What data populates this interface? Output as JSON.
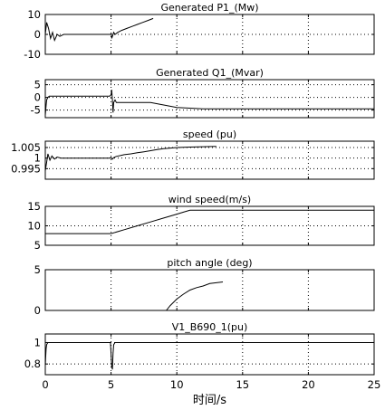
{
  "x_axis": {
    "range": [
      0,
      25
    ],
    "ticks": [
      0,
      5,
      10,
      15,
      20,
      25
    ],
    "tick_labels": [
      "0",
      "5",
      "10",
      "15",
      "20",
      "25"
    ],
    "label": "时间/s"
  },
  "chart_data": [
    {
      "type": "line",
      "title": "Generated P1_(Mw)",
      "xlim": [
        0,
        25
      ],
      "ylim": [
        -10,
        10
      ],
      "yticks": [
        -10,
        0,
        10
      ],
      "ytick_labels": [
        "-10",
        "0",
        "10"
      ],
      "grid": true,
      "series": [
        {
          "x": [
            0,
            0.1,
            0.25,
            0.4,
            0.55,
            0.7,
            0.9,
            1.1,
            1.4,
            1.7,
            2.0,
            5.0,
            5.02,
            5.05,
            5.1,
            5.2,
            5.3,
            5.5,
            5.8,
            6.2,
            6.6,
            7.0,
            7.4,
            7.8,
            8.2
          ],
          "y": [
            0,
            6,
            3,
            -2,
            1,
            -3,
            0,
            -1,
            0,
            0,
            0,
            0,
            0.5,
            -2,
            -1,
            1,
            0,
            1,
            2,
            3,
            4,
            5,
            6,
            7,
            8
          ]
        }
      ]
    },
    {
      "type": "line",
      "title": "Generated Q1_(Mvar)",
      "xlim": [
        0,
        25
      ],
      "ylim": [
        -8,
        7
      ],
      "yticks": [
        -5,
        0,
        5
      ],
      "ytick_labels": [
        "-5",
        "0",
        "5"
      ],
      "grid": true,
      "series": [
        {
          "x": [
            0,
            0.05,
            0.1,
            0.2,
            0.3,
            0.5,
            0.8,
            1.0,
            4.9,
            5.0,
            5.05,
            5.1,
            5.15,
            5.2,
            5.3,
            5.4,
            5.6,
            5.8,
            6.0,
            7.0,
            8.0,
            9.0,
            10.0,
            12.0,
            14.0,
            16.0,
            18.0,
            20.0,
            22.0,
            25.0
          ],
          "y": [
            -7,
            -4,
            -1,
            0,
            0.5,
            0.5,
            0.5,
            0.5,
            0.5,
            1,
            3,
            -1,
            -6,
            -2,
            -1,
            -2,
            -2,
            -2,
            -2,
            -2,
            -2,
            -3,
            -4,
            -4.5,
            -4.5,
            -4.5,
            -4.5,
            -4.5,
            -4.5,
            -4.5
          ]
        }
      ]
    },
    {
      "type": "line",
      "title": "speed (pu)",
      "xlim": [
        0,
        25
      ],
      "ylim": [
        0.99,
        1.008
      ],
      "yticks": [
        0.995,
        1,
        1.005
      ],
      "ytick_labels": [
        "0.995",
        "1",
        "1.005"
      ],
      "grid": true,
      "series": [
        {
          "x": [
            0,
            0.1,
            0.2,
            0.35,
            0.5,
            0.7,
            0.9,
            1.2,
            1.6,
            2.0,
            3.0,
            4.0,
            4.9,
            5.0,
            5.1,
            5.2,
            5.4,
            5.7,
            6.0,
            6.5,
            7.0,
            7.5,
            8.0,
            8.5,
            9.0,
            10.0,
            11.0,
            12.0,
            13.0
          ],
          "y": [
            0.994,
            0.998,
            1.002,
            0.999,
            1.001,
            0.9995,
            1.0005,
            1,
            1,
            1,
            1,
            1,
            1,
            1.0003,
            0.9995,
            1.0002,
            1.0008,
            1.0012,
            1.0016,
            1.002,
            1.0025,
            1.003,
            1.0035,
            1.004,
            1.0045,
            1.005,
            1.0052,
            1.0054,
            1.0055
          ]
        }
      ]
    },
    {
      "type": "line",
      "title": "wind speed(m/s)",
      "xlim": [
        0,
        25
      ],
      "ylim": [
        5,
        15
      ],
      "yticks": [
        5,
        10,
        15
      ],
      "ytick_labels": [
        "5",
        "10",
        "15"
      ],
      "grid": true,
      "series": [
        {
          "x": [
            0,
            5,
            6,
            7,
            8,
            9,
            10,
            10.5,
            11,
            11.5,
            25
          ],
          "y": [
            8,
            8,
            9,
            10,
            11,
            12,
            13,
            13.5,
            14,
            14,
            14
          ]
        }
      ]
    },
    {
      "type": "line",
      "title": "pitch angle (deg)",
      "xlim": [
        0,
        25
      ],
      "ylim": [
        0,
        5
      ],
      "yticks": [
        0,
        5
      ],
      "ytick_labels": [
        "0",
        "5"
      ],
      "grid": true,
      "series": [
        {
          "x": [
            0,
            9.2,
            9.5,
            10,
            10.5,
            11,
            11.5,
            12,
            12.5,
            13,
            13.5
          ],
          "y": [
            0,
            0,
            0.6,
            1.4,
            2.0,
            2.5,
            2.8,
            3.0,
            3.3,
            3.4,
            3.5
          ]
        }
      ]
    },
    {
      "type": "line",
      "title": "V1_B690_1(pu)",
      "xlim": [
        0,
        25
      ],
      "ylim": [
        0.7,
        1.08
      ],
      "yticks": [
        0.8,
        1
      ],
      "ytick_labels": [
        "0.8",
        "1"
      ],
      "grid": true,
      "series": [
        {
          "x": [
            0,
            0.03,
            0.06,
            0.1,
            0.2,
            0.3,
            4.95,
            5.0,
            5.05,
            5.1,
            5.15,
            5.2,
            5.3,
            25
          ],
          "y": [
            0.78,
            0.86,
            0.94,
            0.98,
            1,
            1,
            1,
            0.9,
            0.78,
            0.75,
            0.9,
            0.98,
            1,
            1
          ]
        }
      ]
    }
  ]
}
